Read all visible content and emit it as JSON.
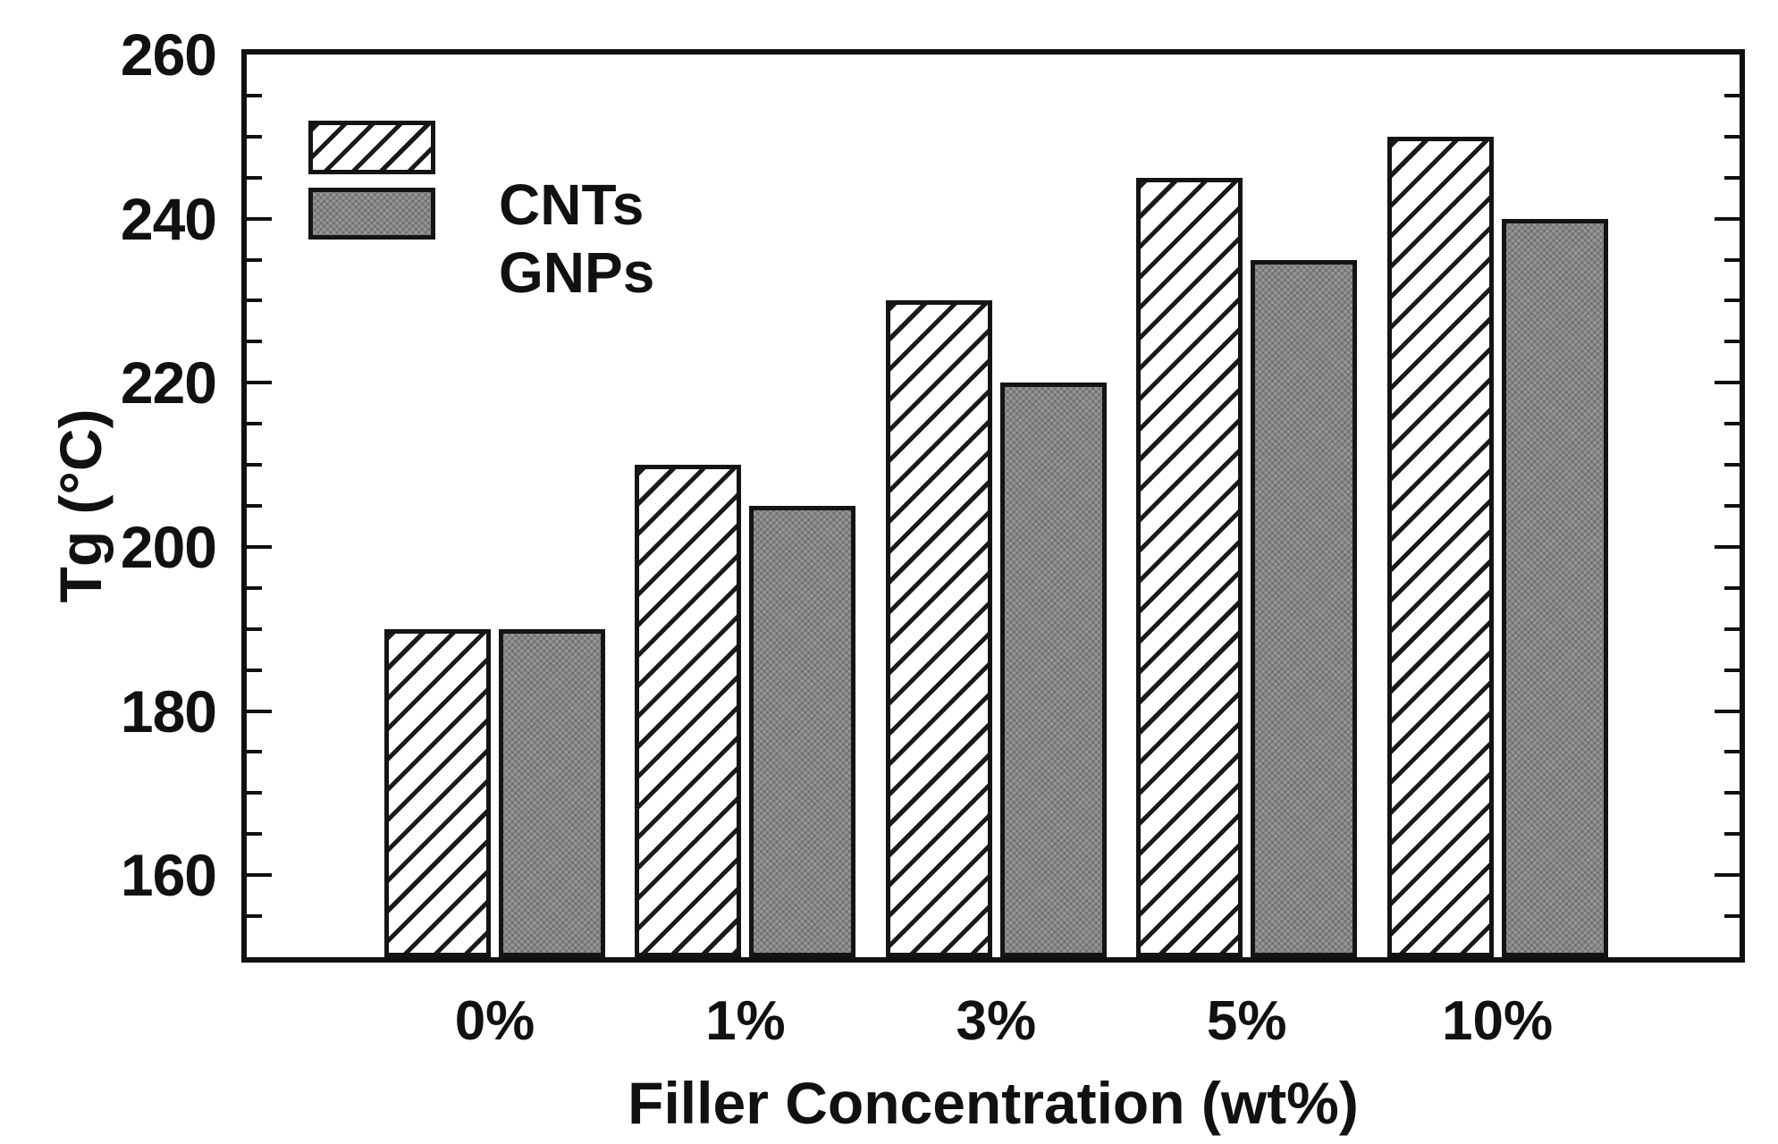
{
  "chart_data": {
    "type": "bar",
    "title": "",
    "categories": [
      "0%",
      "1%",
      "3%",
      "5%",
      "10%"
    ],
    "series": [
      {
        "name": "CNTs",
        "style": "hatched",
        "values": [
          190,
          210,
          230,
          245,
          250
        ]
      },
      {
        "name": "GNPs",
        "style": "gray",
        "values": [
          190,
          205,
          220,
          235,
          240
        ]
      }
    ],
    "xlabel": "Filler Concentration (wt%)",
    "ylabel": "Tg (°C)",
    "ylim": [
      150,
      260
    ],
    "yticks_major": [
      260,
      240,
      220,
      200,
      180,
      160
    ],
    "ytick_minor_step": 5,
    "grid": false,
    "legend_position": "top-left",
    "legend": [
      {
        "label": "CNTs",
        "swatch": "hatched"
      },
      {
        "label": "GNPs",
        "swatch": "gray"
      }
    ],
    "colors": {
      "frame": "#111111",
      "bar_edge": "#141414",
      "gray_fill": "#979797",
      "text": "#111111",
      "background": "#ffffff"
    }
  }
}
